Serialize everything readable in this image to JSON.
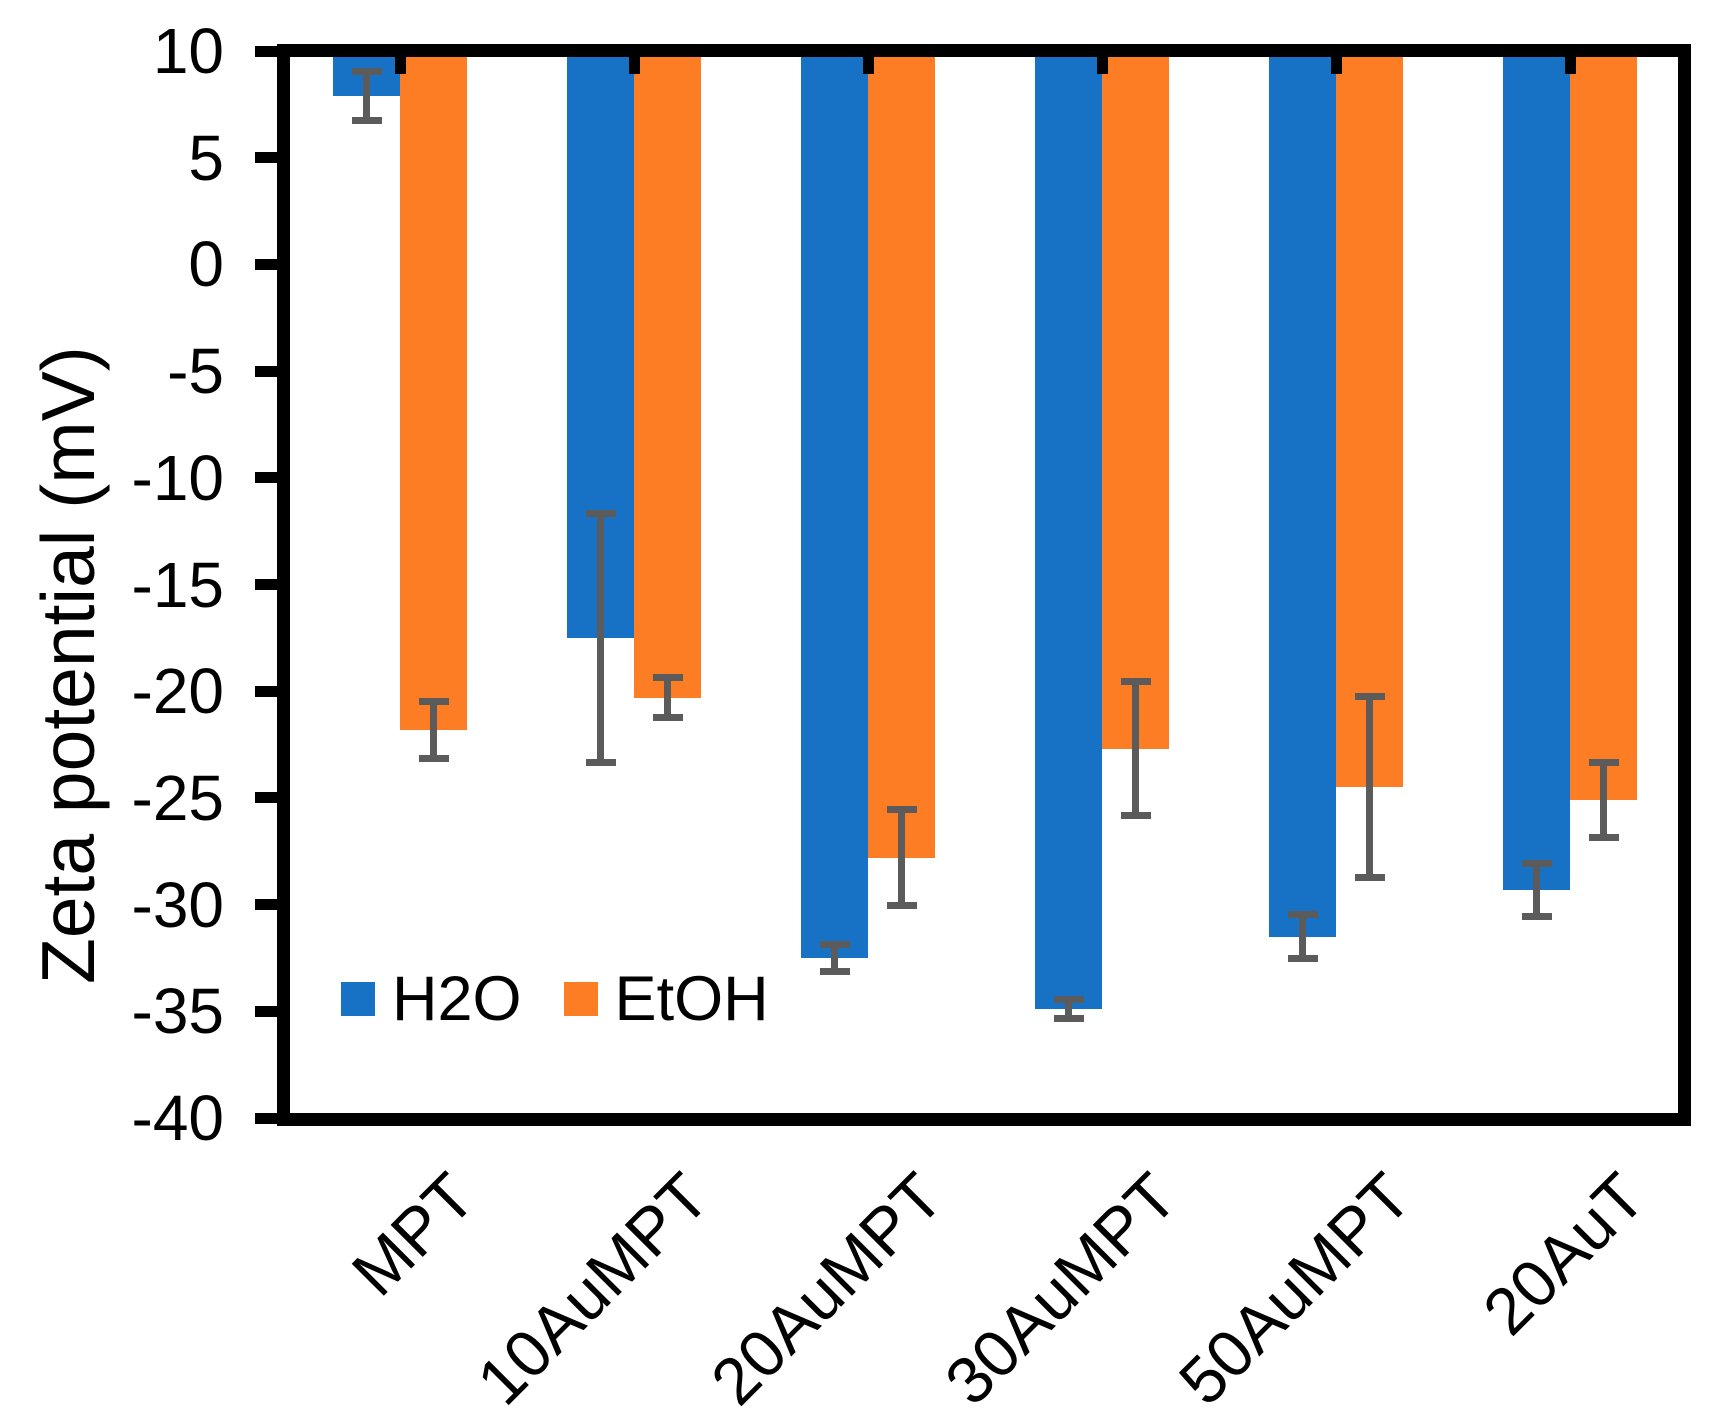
{
  "figure": {
    "background": "#ffffff",
    "y_axis": {
      "title": "Zeta potential (mV)",
      "max": 10,
      "min": -40,
      "step": 5,
      "tick_labels": [
        "10",
        "5",
        "0",
        "-5",
        "-10",
        "-15",
        "-20",
        "-25",
        "-30",
        "-35",
        "-40"
      ]
    },
    "x_axis": {
      "category_labels": [
        "MPT",
        "10AuMPT",
        "20AuMPT",
        "30AuMPT",
        "50AuMPT",
        "20AuT"
      ],
      "label_rotation_deg": -45
    },
    "legend": {
      "position": "inside-bottom-left",
      "items": [
        {
          "label": "H2O",
          "color": "#1772c6"
        },
        {
          "label": "EtOH",
          "color": "#fd7d24"
        }
      ]
    },
    "colors": {
      "axis": "#000000",
      "error_bar": "#5b5b5b",
      "h2o_blue": "#1772c6",
      "etoh_orange": "#fd7d24"
    }
  },
  "chart_data": {
    "type": "bar",
    "title": "",
    "xlabel": "",
    "ylabel": "Zeta potential (mV)",
    "ylim": [
      -40,
      10
    ],
    "bar_baseline": 10,
    "grid": false,
    "legend_position": "inside bottom-left",
    "categories": [
      "MPT",
      "10AuMPT",
      "20AuMPT",
      "30AuMPT",
      "50AuMPT",
      "20AuT"
    ],
    "series": [
      {
        "name": "H2O",
        "color": "#1772c6",
        "values": [
          7.9,
          -17.5,
          -32.5,
          -34.9,
          -31.5,
          -29.3
        ],
        "errors": [
          1.3,
          6.0,
          0.8,
          0.6,
          1.2,
          1.4
        ]
      },
      {
        "name": "EtOH",
        "color": "#fd7d24",
        "values": [
          -21.8,
          -20.3,
          -27.8,
          -22.7,
          -24.5,
          -25.1
        ],
        "errors": [
          1.5,
          1.1,
          2.4,
          3.3,
          4.4,
          1.9
        ]
      }
    ],
    "error_bar_color": "#5b5b5b"
  }
}
